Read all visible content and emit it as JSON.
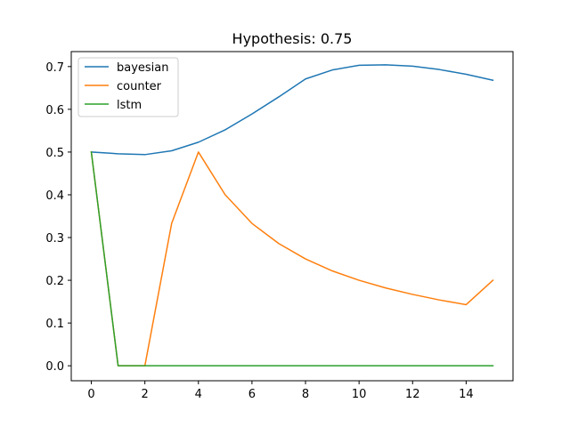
{
  "chart_data": {
    "type": "line",
    "title": "Hypothesis: 0.75",
    "xlabel": "",
    "ylabel": "",
    "x": [
      0,
      1,
      2,
      3,
      4,
      5,
      6,
      7,
      8,
      9,
      10,
      11,
      12,
      13,
      14,
      15
    ],
    "xlim": [
      -0.75,
      15.75
    ],
    "ylim": [
      -0.035,
      0.735
    ],
    "xticks": [
      0,
      2,
      4,
      6,
      8,
      10,
      12,
      14
    ],
    "yticks": [
      0.0,
      0.1,
      0.2,
      0.3,
      0.4,
      0.5,
      0.6,
      0.7
    ],
    "ytick_labels": [
      "0.0",
      "0.1",
      "0.2",
      "0.3",
      "0.4",
      "0.5",
      "0.6",
      "0.7"
    ],
    "grid": false,
    "legend": "top-left",
    "series": [
      {
        "name": "bayesian",
        "color": "#1f77b4",
        "values": [
          0.5,
          0.496,
          0.494,
          0.503,
          0.523,
          0.552,
          0.589,
          0.629,
          0.671,
          0.692,
          0.703,
          0.704,
          0.701,
          0.693,
          0.682,
          0.668
        ]
      },
      {
        "name": "counter",
        "color": "#ff7f0e",
        "values": [
          0.5,
          0.0,
          0.0,
          0.333,
          0.5,
          0.4,
          0.333,
          0.286,
          0.25,
          0.222,
          0.2,
          0.182,
          0.167,
          0.154,
          0.143,
          0.2
        ]
      },
      {
        "name": "lstm",
        "color": "#2ca02c",
        "values": [
          0.5,
          0.0,
          0.0,
          0.0,
          0.0,
          0.0,
          0.0,
          0.0,
          0.0,
          0.0,
          0.0,
          0.0,
          0.0,
          0.0,
          0.0,
          0.0
        ]
      }
    ]
  }
}
